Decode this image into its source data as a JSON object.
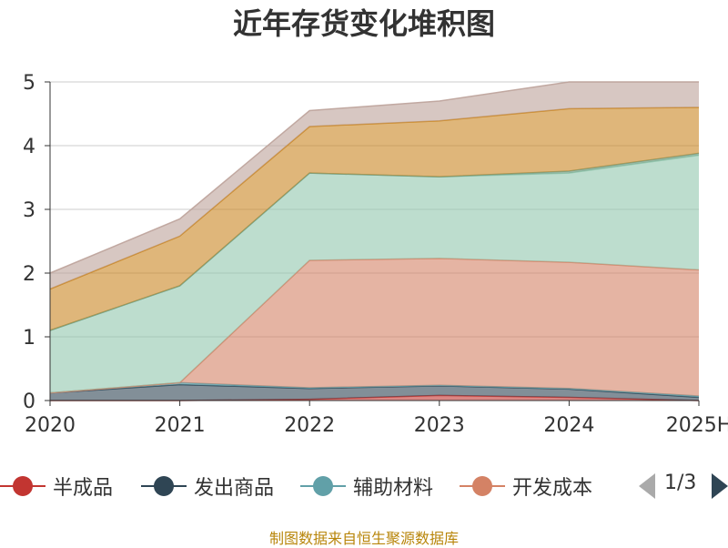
{
  "title": "近年存货变化堆积图",
  "source_note": "制图数据来自恒生聚源数据库",
  "pager": {
    "text": "1/3"
  },
  "chart_data": {
    "type": "area",
    "stacked": true,
    "title": "近年存货变化堆积图",
    "x": [
      "2020",
      "2021",
      "2022",
      "2023",
      "2024",
      "2025H"
    ],
    "ylim": [
      0,
      5
    ],
    "yticks": [
      0,
      1,
      2,
      3,
      4,
      5
    ],
    "grid": true,
    "legend_position": "bottom",
    "series": [
      {
        "name": "半成品",
        "color": "#c23531",
        "values": [
          0.0,
          0.0,
          0.02,
          0.08,
          0.05,
          0.0
        ]
      },
      {
        "name": "发出商品",
        "color": "#2f4554",
        "values": [
          0.12,
          0.25,
          0.17,
          0.15,
          0.13,
          0.05
        ]
      },
      {
        "name": "辅助材料",
        "color": "#61a0a8",
        "values": [
          0.0,
          0.03,
          0.01,
          0.01,
          0.01,
          0.02
        ]
      },
      {
        "name": "开发成本",
        "color": "#d48265",
        "values": [
          0.0,
          0.0,
          2.0,
          1.99,
          1.98,
          1.98
        ]
      },
      {
        "color": "#91c7ae",
        "values": [
          0.98,
          1.52,
          1.37,
          1.28,
          1.4,
          1.8
        ]
      },
      {
        "color": "#749f83",
        "values": [
          0.0,
          0.0,
          0.0,
          0.0,
          0.03,
          0.03
        ]
      },
      {
        "color": "#ca8622",
        "values": [
          0.65,
          0.78,
          0.73,
          0.88,
          0.98,
          0.72
        ]
      },
      {
        "color": "#bda29a",
        "values": [
          0.25,
          0.27,
          0.25,
          0.31,
          0.42,
          0.4
        ]
      }
    ]
  }
}
